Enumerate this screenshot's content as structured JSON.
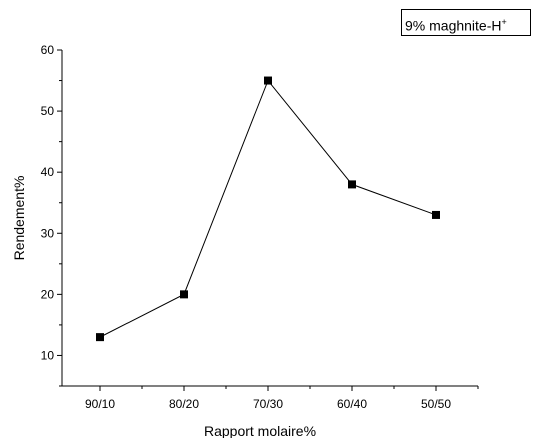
{
  "legend": {
    "text": "9% maghnite-H",
    "superscript": "+"
  },
  "chart_data": {
    "type": "line",
    "title": "",
    "xlabel": "Rapport molaire%",
    "ylabel": "Rendement%",
    "categories": [
      "90/10",
      "80/20",
      "70/30",
      "60/40",
      "50/50"
    ],
    "series": [
      {
        "name": "9% maghnite-H+",
        "values": [
          13,
          20,
          55,
          38,
          33
        ],
        "color": "#000000",
        "marker": "square"
      }
    ],
    "ylim": [
      5,
      60
    ],
    "yticks": [
      10,
      20,
      30,
      40,
      50,
      60
    ],
    "grid": false,
    "legend_position": "top-right"
  }
}
